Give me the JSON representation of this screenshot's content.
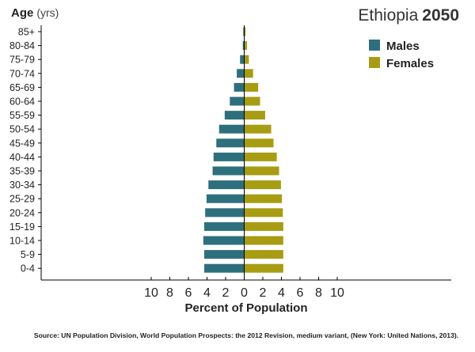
{
  "chart_data": {
    "type": "bar",
    "orientation": "horizontal",
    "layout": "population-pyramid",
    "title_main": "Ethiopia",
    "title_year": "2050",
    "yaxis_title_bold": "Age",
    "yaxis_title_unit": "(yrs)",
    "xlabel": "Percent of Population",
    "xlim": [
      -11,
      11
    ],
    "x_ticks": [
      10,
      8,
      6,
      4,
      2,
      0,
      2,
      4,
      6,
      8,
      10
    ],
    "grid": false,
    "legend_position": "top-right",
    "categories": [
      "85+",
      "80-84",
      "75-79",
      "70-74",
      "65-69",
      "60-64",
      "55-59",
      "50-54",
      "45-49",
      "40-44",
      "35-39",
      "30-34",
      "25-29",
      "20-24",
      "15-19",
      "10-14",
      "5-9",
      "0-4"
    ],
    "series": [
      {
        "name": "Males",
        "color": "#2e6f7e",
        "side": "left",
        "values": [
          0.1,
          0.15,
          0.45,
          0.8,
          1.1,
          1.55,
          2.1,
          2.7,
          3.0,
          3.3,
          3.4,
          3.85,
          4.05,
          4.2,
          4.3,
          4.4,
          4.3,
          4.3
        ]
      },
      {
        "name": "Females",
        "color": "#a89c12",
        "side": "right",
        "values": [
          0.15,
          0.3,
          0.5,
          0.95,
          1.5,
          1.7,
          2.25,
          2.9,
          3.15,
          3.5,
          3.75,
          3.95,
          4.05,
          4.15,
          4.2,
          4.2,
          4.2,
          4.2
        ]
      }
    ]
  },
  "source_note": "Source: UN Population Division, World Population Prospects: the 2012 Revision, medium variant, (New York: United Nations, 2013)."
}
